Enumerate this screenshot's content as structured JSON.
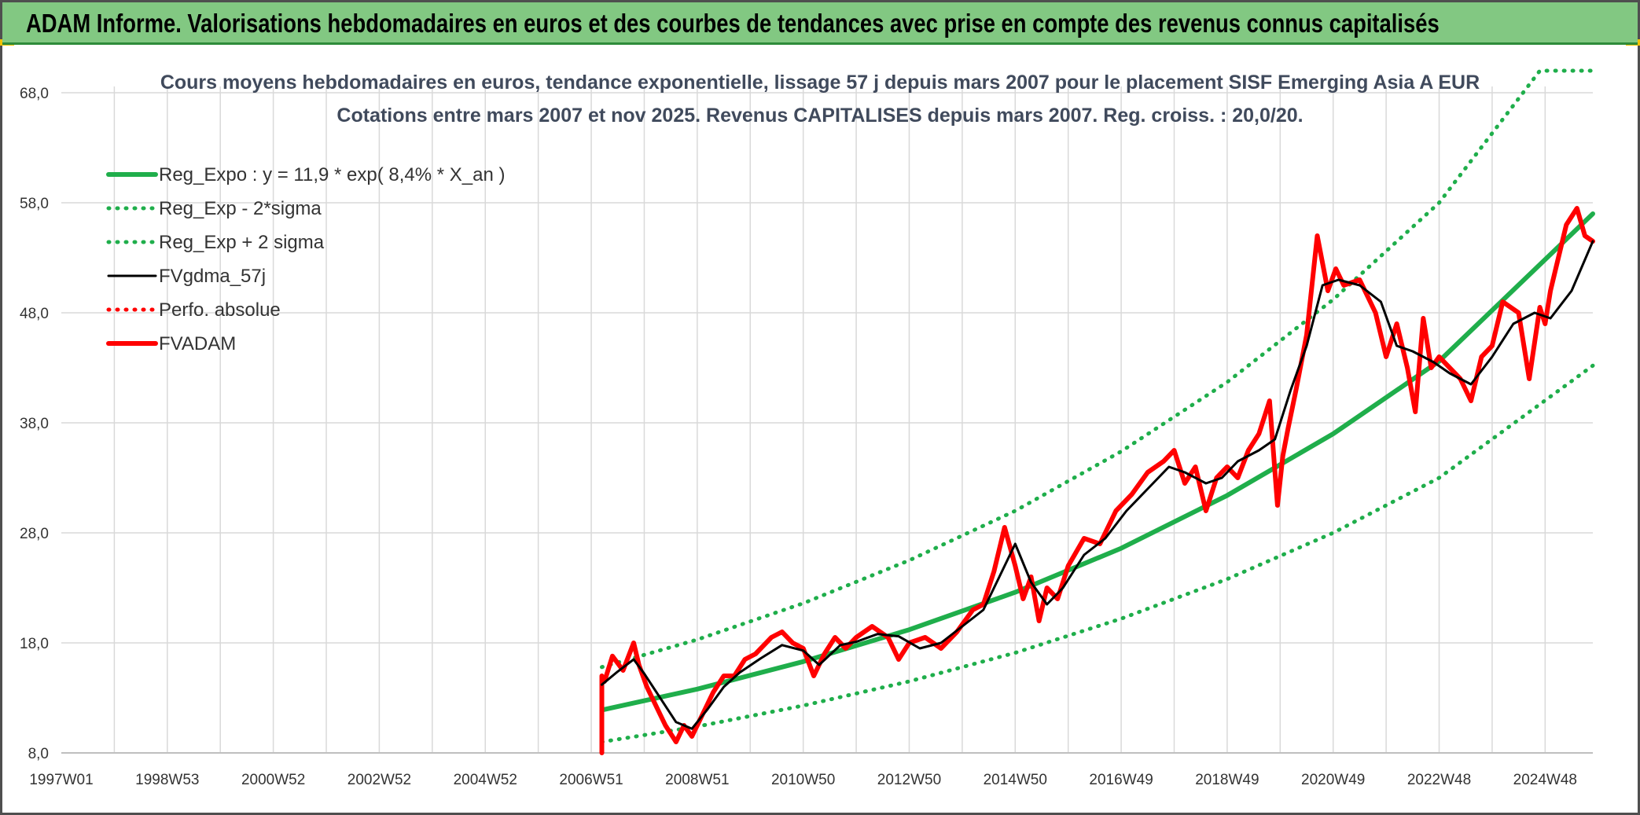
{
  "header": {
    "title": "ADAM Informe. Valorisations hebdomadaires en euros et des courbes de tendances avec prise en compte des revenus connus capitalisés"
  },
  "colors": {
    "header_bg": "#82c882",
    "green": "#1fae4b",
    "black": "#000000",
    "red": "#ff0000",
    "grid": "#d9d9d9"
  },
  "chart_data": {
    "type": "line",
    "title": "Cours moyens hebdomadaires en euros, tendance exponentielle, lissage 57 j depuis mars 2007 pour le placement SISF Emerging Asia A EUR",
    "subtitle": "Cotations entre mars 2007 et nov 2025. Revenus CAPITALISES depuis mars 2007. Reg. croiss. : 20,0/20.",
    "xlabel": "",
    "ylabel": "",
    "x_tick_labels": [
      "1997W01",
      "1998W53",
      "2000W52",
      "2002W52",
      "2004W52",
      "2006W51",
      "2008W51",
      "2010W50",
      "2012W50",
      "2014W50",
      "2016W49",
      "2018W49",
      "2020W49",
      "2022W48",
      "2024W48"
    ],
    "xlim": [
      1997.0,
      2025.9
    ],
    "ylim": [
      8.0,
      68.0
    ],
    "y_ticks": [
      "8,0",
      "18,0",
      "28,0",
      "38,0",
      "48,0",
      "58,0",
      "68,0"
    ],
    "grid": true,
    "legend_position": "top-left",
    "series": [
      {
        "name": "Reg_Expo : y = 11,9 * exp( 8,4% *  X_an )",
        "style": "solid-thick",
        "color": "#1fae4b",
        "x": [
          2007.2,
          2009.0,
          2011.0,
          2013.0,
          2015.0,
          2017.0,
          2019.0,
          2021.0,
          2023.0,
          2025.9
        ],
        "y": [
          11.9,
          13.8,
          16.3,
          19.2,
          22.6,
          26.6,
          31.4,
          37.0,
          43.6,
          57.0
        ]
      },
      {
        "name": "Reg_Exp - 2*sigma",
        "style": "dotted",
        "color": "#1fae4b",
        "x": [
          2007.2,
          2009.0,
          2011.0,
          2013.0,
          2015.0,
          2017.0,
          2019.0,
          2021.0,
          2023.0,
          2025.9
        ],
        "y": [
          9.0,
          10.4,
          12.3,
          14.5,
          17.1,
          20.2,
          23.8,
          28.0,
          33.0,
          43.2
        ]
      },
      {
        "name": "Reg_Exp + 2 sigma",
        "style": "dotted",
        "color": "#1fae4b",
        "x": [
          2007.2,
          2009.0,
          2011.0,
          2013.0,
          2015.0,
          2017.0,
          2019.0,
          2021.0,
          2023.0,
          2024.9,
          2025.9
        ],
        "y": [
          15.8,
          18.3,
          21.6,
          25.5,
          30.0,
          35.4,
          41.7,
          49.2,
          58.0,
          70.0,
          70.0
        ]
      },
      {
        "name": "FVgdma_57j",
        "style": "solid",
        "color": "#000000",
        "x": [
          2007.2,
          2007.5,
          2007.8,
          2008.0,
          2008.3,
          2008.6,
          2008.9,
          2009.2,
          2009.5,
          2009.8,
          2010.2,
          2010.6,
          2011.0,
          2011.3,
          2011.7,
          2012.0,
          2012.4,
          2012.8,
          2013.2,
          2013.6,
          2014.0,
          2014.4,
          2014.7,
          2015.0,
          2015.3,
          2015.6,
          2015.9,
          2016.3,
          2016.7,
          2017.1,
          2017.5,
          2017.9,
          2018.2,
          2018.6,
          2018.9,
          2019.2,
          2019.6,
          2019.9,
          2020.2,
          2020.5,
          2020.8,
          2021.1,
          2021.5,
          2021.9,
          2022.2,
          2022.5,
          2022.9,
          2023.2,
          2023.6,
          2024.0,
          2024.4,
          2024.8,
          2025.1,
          2025.5,
          2025.9
        ],
        "y": [
          14.2,
          15.4,
          16.5,
          15.2,
          13.0,
          10.8,
          10.2,
          12.0,
          14.0,
          15.3,
          16.6,
          17.8,
          17.3,
          16.0,
          17.8,
          18.1,
          18.8,
          18.6,
          17.5,
          18.0,
          19.5,
          21.0,
          24.0,
          27.0,
          23.5,
          21.5,
          23.0,
          26.0,
          27.5,
          30.0,
          32.0,
          34.0,
          33.5,
          32.5,
          33.0,
          34.5,
          35.5,
          36.5,
          41.0,
          45.0,
          50.5,
          51.0,
          50.5,
          49.0,
          45.0,
          44.5,
          43.5,
          42.5,
          41.5,
          44.0,
          47.0,
          48.0,
          47.5,
          50.0,
          54.5
        ]
      },
      {
        "name": "Perfo. absolue",
        "style": "dotted",
        "color": "#ff0000",
        "x": [],
        "y": []
      },
      {
        "name": "FVADAM",
        "style": "solid-thick",
        "color": "#ff0000",
        "x": [
          2007.2,
          2007.2,
          2007.25,
          2007.4,
          2007.6,
          2007.8,
          2007.9,
          2008.05,
          2008.2,
          2008.4,
          2008.6,
          2008.75,
          2008.9,
          2009.1,
          2009.3,
          2009.5,
          2009.7,
          2009.9,
          2010.1,
          2010.4,
          2010.6,
          2010.8,
          2011.0,
          2011.2,
          2011.4,
          2011.6,
          2011.8,
          2012.0,
          2012.3,
          2012.6,
          2012.8,
          2013.0,
          2013.3,
          2013.6,
          2013.9,
          2014.2,
          2014.4,
          2014.6,
          2014.8,
          2015.0,
          2015.15,
          2015.3,
          2015.45,
          2015.6,
          2015.8,
          2016.0,
          2016.3,
          2016.6,
          2016.9,
          2017.2,
          2017.5,
          2017.8,
          2018.0,
          2018.2,
          2018.4,
          2018.6,
          2018.8,
          2019.0,
          2019.2,
          2019.4,
          2019.6,
          2019.8,
          2019.95,
          2020.05,
          2020.15,
          2020.3,
          2020.5,
          2020.7,
          2020.9,
          2021.05,
          2021.2,
          2021.5,
          2021.8,
          2022.0,
          2022.2,
          2022.4,
          2022.55,
          2022.7,
          2022.85,
          2023.0,
          2023.2,
          2023.4,
          2023.6,
          2023.8,
          2024.0,
          2024.2,
          2024.35,
          2024.5,
          2024.7,
          2024.9,
          2025.0,
          2025.1,
          2025.2,
          2025.4,
          2025.6,
          2025.75,
          2025.9
        ],
        "y": [
          8.0,
          15.0,
          14.5,
          16.8,
          15.5,
          18.0,
          16.0,
          14.0,
          12.5,
          10.5,
          9.0,
          10.5,
          9.5,
          11.5,
          13.5,
          15.0,
          15.0,
          16.5,
          17.0,
          18.5,
          19.0,
          18.0,
          17.5,
          15.0,
          17.0,
          18.5,
          17.5,
          18.5,
          19.5,
          18.5,
          16.5,
          18.0,
          18.5,
          17.5,
          19.0,
          21.0,
          21.5,
          24.5,
          28.5,
          25.0,
          22.0,
          24.0,
          20.0,
          23.0,
          22.0,
          25.0,
          27.5,
          27.0,
          30.0,
          31.5,
          33.5,
          34.5,
          35.5,
          32.5,
          34.0,
          30.0,
          33.0,
          34.0,
          33.0,
          35.5,
          37.0,
          40.0,
          30.5,
          35.0,
          37.5,
          41.0,
          46.0,
          55.0,
          50.0,
          52.0,
          50.5,
          51.0,
          48.0,
          44.0,
          47.0,
          43.0,
          39.0,
          47.5,
          43.0,
          44.0,
          43.0,
          42.0,
          40.0,
          44.0,
          45.0,
          49.0,
          48.5,
          48.0,
          42.0,
          48.5,
          47.0,
          50.0,
          52.0,
          56.0,
          57.5,
          55.0,
          54.5
        ]
      }
    ]
  }
}
